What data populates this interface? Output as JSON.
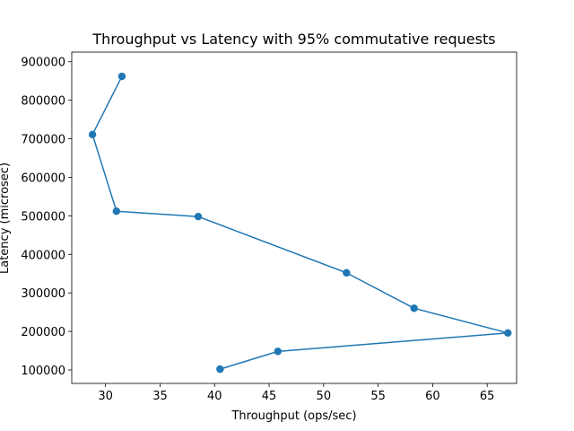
{
  "chart_data": {
    "type": "line",
    "title": "Throughput vs Latency with 95% commutative requests",
    "xlabel": "Throughput (ops/sec)",
    "ylabel": "Latency (microsec)",
    "xlim": [
      26.9,
      67.7
    ],
    "ylim": [
      65000,
      925000
    ],
    "x_ticks": [
      30,
      35,
      40,
      45,
      50,
      55,
      60,
      65
    ],
    "y_ticks": [
      100000,
      200000,
      300000,
      400000,
      500000,
      600000,
      700000,
      800000,
      900000
    ],
    "grid": false,
    "series": [
      {
        "color": "#1f77b4",
        "marker": "circle",
        "points": [
          {
            "x": 40.5,
            "y": 102000
          },
          {
            "x": 45.8,
            "y": 148000
          },
          {
            "x": 66.9,
            "y": 196000
          },
          {
            "x": 58.3,
            "y": 260000
          },
          {
            "x": 52.1,
            "y": 352000
          },
          {
            "x": 38.5,
            "y": 498000
          },
          {
            "x": 31.0,
            "y": 512000
          },
          {
            "x": 28.8,
            "y": 711000
          },
          {
            "x": 31.5,
            "y": 862000
          }
        ]
      }
    ]
  }
}
